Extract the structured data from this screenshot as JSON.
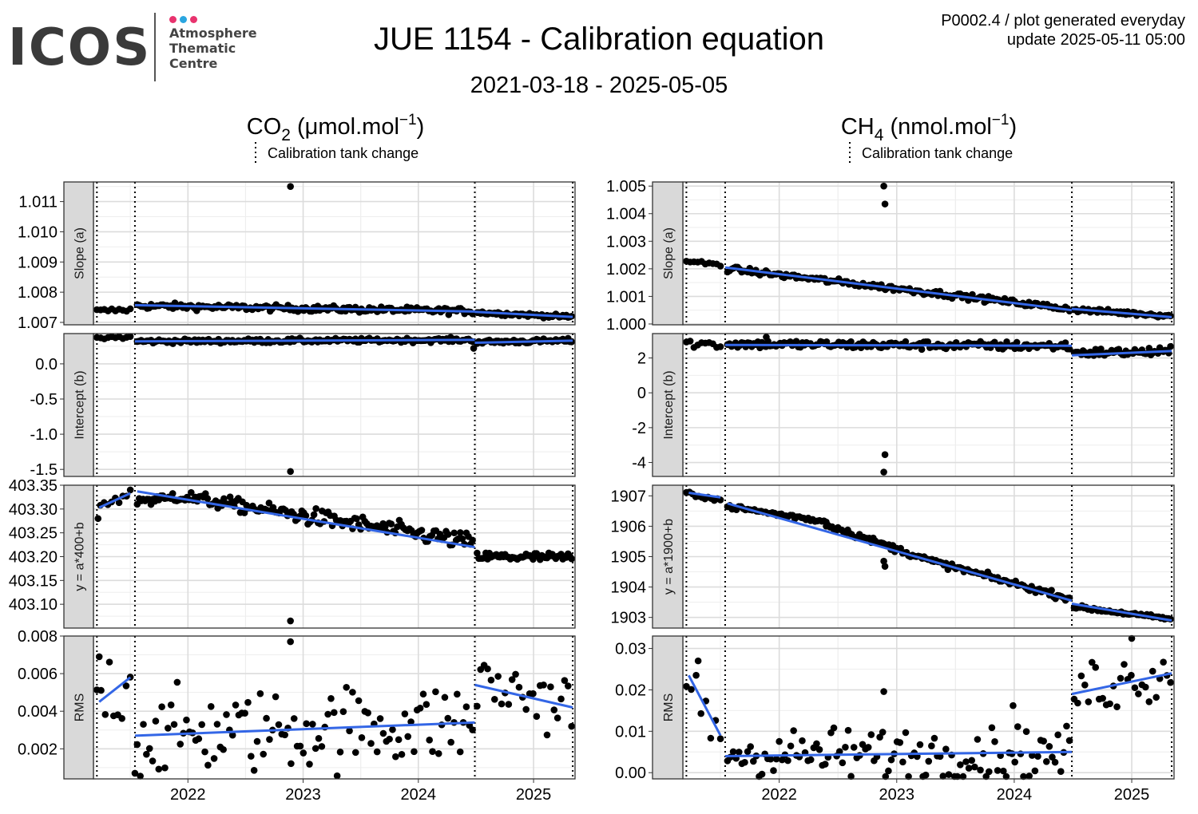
{
  "header": {
    "logo": {
      "wordmark": "ICOS",
      "line1": "Atmosphere",
      "line2": "Thematic",
      "line3": "Centre",
      "dot_colors": [
        "#e8336e",
        "#2aa6e0",
        "#e8336e"
      ]
    },
    "title": "JUE 1154 - Calibration equation",
    "date_range": "2021-03-18 - 2025-05-05",
    "meta_line1": "P0002.4 / plot generated everyday",
    "meta_line2": "update  2025-05-11 05:00"
  },
  "colors": {
    "points": "#000000",
    "trend": "#3366e6",
    "strip_bg": "#d9d9d9",
    "grid_major": "#dcdcdc",
    "grid_minor": "#eeeeee"
  },
  "chart_data": [
    {
      "type": "scatter",
      "title_main": "CO",
      "title_sub": "2",
      "title_unit": " (μmol.mol",
      "title_exp": "−1",
      "title_close": ")",
      "legend": "Calibration tank change",
      "x_ticks": [
        "2022",
        "2023",
        "2024",
        "2025"
      ],
      "x_tick_values": [
        2022.0,
        2023.0,
        2024.0,
        2025.0
      ],
      "xlim": [
        2021.18,
        2025.36
      ],
      "tank_changes": [
        2021.21,
        2021.54,
        2024.49,
        2025.34
      ],
      "panels": [
        {
          "label": "Slope (a)",
          "ylim": [
            1.00692,
            1.01165
          ],
          "y_ticks": [
            "1.007",
            "1.008",
            "1.009",
            "1.010",
            "1.011"
          ],
          "y_tick_values": [
            1.007,
            1.008,
            1.009,
            1.01,
            1.011
          ],
          "trend": [
            [
              2021.54,
              1.00757
            ],
            [
              2024.49,
              1.00736
            ],
            [
              2024.49,
              1.00735
            ],
            [
              2025.34,
              1.00718
            ]
          ],
          "outliers": [
            [
              2022.89,
              1.0115
            ]
          ],
          "segments": [
            {
              "from": 2021.21,
              "to": 2021.5,
              "n": 10,
              "start": 1.00738,
              "end": 1.00742,
              "noise": 4e-05
            },
            {
              "from": 2021.56,
              "to": 2024.47,
              "n": 170,
              "start": 1.00755,
              "end": 1.00737,
              "noise": 5e-05
            },
            {
              "from": 2024.51,
              "to": 2025.33,
              "n": 55,
              "start": 1.00733,
              "end": 1.00718,
              "noise": 3e-05
            }
          ]
        },
        {
          "label": "Intercept (b)",
          "ylim": [
            -1.6,
            0.43
          ],
          "y_ticks": [
            "-1.5",
            "-1.0",
            "-0.5",
            "0.0"
          ],
          "y_tick_values": [
            -1.5,
            -1.0,
            -0.5,
            0.0
          ],
          "trend": [
            [
              2021.54,
              0.32
            ],
            [
              2024.49,
              0.34
            ],
            [
              2024.49,
              0.3
            ],
            [
              2025.34,
              0.33
            ]
          ],
          "outliers": [
            [
              2022.89,
              -1.53
            ],
            [
              2024.48,
              0.22
            ]
          ],
          "segments": [
            {
              "from": 2021.21,
              "to": 2021.5,
              "n": 10,
              "start": 0.37,
              "end": 0.38,
              "noise": 0.015
            },
            {
              "from": 2021.56,
              "to": 2024.47,
              "n": 170,
              "start": 0.32,
              "end": 0.34,
              "noise": 0.015
            },
            {
              "from": 2024.51,
              "to": 2025.33,
              "n": 55,
              "start": 0.31,
              "end": 0.33,
              "noise": 0.015
            }
          ]
        },
        {
          "label": "y = a*400+b",
          "ylim": [
            403.05,
            403.35
          ],
          "y_ticks": [
            "403.10",
            "403.15",
            "403.20",
            "403.25",
            "403.30",
            "403.35"
          ],
          "y_tick_values": [
            403.1,
            403.15,
            403.2,
            403.25,
            403.3,
            403.35
          ],
          "trend": [
            [
              2021.23,
              403.303
            ],
            [
              2021.5,
              403.333
            ],
            [
              2021.56,
              403.337
            ],
            [
              2024.49,
              403.22
            ]
          ],
          "outliers": [
            [
              2022.89,
              403.065
            ],
            [
              2021.22,
              403.28
            ]
          ],
          "segments": [
            {
              "from": 2021.24,
              "to": 2021.5,
              "n": 9,
              "start": 403.31,
              "end": 403.33,
              "noise": 0.006
            },
            {
              "from": 2021.56,
              "to": 2021.85,
              "n": 18,
              "start": 403.32,
              "end": 403.32,
              "noise": 0.007
            },
            {
              "from": 2021.85,
              "to": 2022.9,
              "n": 60,
              "start": 403.33,
              "end": 403.29,
              "noise": 0.007
            },
            {
              "from": 2022.9,
              "to": 2024.47,
              "n": 90,
              "start": 403.29,
              "end": 403.23,
              "noise": 0.009
            },
            {
              "from": 2024.51,
              "to": 2025.33,
              "n": 55,
              "start": 403.2,
              "end": 403.198,
              "noise": 0.005
            }
          ]
        },
        {
          "label": "RMS",
          "ylim": [
            0.0004,
            0.008
          ],
          "y_ticks": [
            "0.002",
            "0.004",
            "0.006",
            "0.008"
          ],
          "y_tick_values": [
            0.002,
            0.004,
            0.006,
            0.008
          ],
          "trend": [
            [
              2021.23,
              0.0045
            ],
            [
              2021.5,
              0.0058
            ],
            [
              2021.54,
              0.0027
            ],
            [
              2024.49,
              0.0034
            ],
            [
              2024.49,
              0.0054
            ],
            [
              2025.34,
              0.0042
            ]
          ],
          "outliers": [
            [
              2022.89,
              0.0077
            ],
            [
              2021.23,
              0.0069
            ],
            [
              2021.54,
              0.0007
            ]
          ],
          "segments": [
            {
              "from": 2021.21,
              "to": 2021.5,
              "n": 9,
              "start": 0.0048,
              "end": 0.0055,
              "noise": 0.0011
            },
            {
              "from": 2021.56,
              "to": 2024.47,
              "n": 110,
              "start": 0.0027,
              "end": 0.0034,
              "noise": 0.0011
            },
            {
              "from": 2024.51,
              "to": 2025.33,
              "n": 28,
              "start": 0.0055,
              "end": 0.0043,
              "noise": 0.0009
            }
          ]
        }
      ]
    },
    {
      "type": "scatter",
      "title_main": "CH",
      "title_sub": "4",
      "title_unit": " (nmol.mol",
      "title_exp": "−1",
      "title_close": ")",
      "legend": "Calibration tank change",
      "x_ticks": [
        "2022",
        "2023",
        "2024",
        "2025"
      ],
      "x_tick_values": [
        2022.0,
        2023.0,
        2024.0,
        2025.0
      ],
      "xlim": [
        2021.18,
        2025.36
      ],
      "tank_changes": [
        2021.21,
        2021.54,
        2024.49,
        2025.34
      ],
      "panels": [
        {
          "label": "Slope (a)",
          "ylim": [
            0.99997,
            1.00515
          ],
          "y_ticks": [
            "1.000",
            "1.001",
            "1.002",
            "1.003",
            "1.004",
            "1.005"
          ],
          "y_tick_values": [
            1.0,
            1.001,
            1.002,
            1.003,
            1.004,
            1.005
          ],
          "trend": [
            [
              2021.54,
              1.00205
            ],
            [
              2024.49,
              1.0005
            ],
            [
              2024.49,
              1.00055
            ],
            [
              2025.34,
              1.00025
            ]
          ],
          "outliers": [
            [
              2022.89,
              1.005
            ],
            [
              2022.9,
              1.00435
            ]
          ],
          "segments": [
            {
              "from": 2021.21,
              "to": 2021.5,
              "n": 10,
              "start": 1.00225,
              "end": 1.00215,
              "noise": 5e-05
            },
            {
              "from": 2021.56,
              "to": 2024.47,
              "n": 170,
              "start": 1.002,
              "end": 1.00055,
              "noise": 5e-05
            },
            {
              "from": 2024.51,
              "to": 2025.33,
              "n": 55,
              "start": 1.00052,
              "end": 1.0003,
              "noise": 4e-05
            }
          ]
        },
        {
          "label": "Intercept (b)",
          "ylim": [
            -4.8,
            3.4
          ],
          "y_ticks": [
            "-4",
            "-2",
            "0",
            "2"
          ],
          "y_tick_values": [
            -4,
            -2,
            0,
            2
          ],
          "trend": [
            [
              2021.54,
              2.75
            ],
            [
              2024.49,
              2.7
            ],
            [
              2024.49,
              2.15
            ],
            [
              2025.34,
              2.4
            ]
          ],
          "outliers": [
            [
              2022.89,
              -4.55
            ],
            [
              2022.9,
              -3.55
            ],
            [
              2021.89,
              3.2
            ]
          ],
          "segments": [
            {
              "from": 2021.21,
              "to": 2021.5,
              "n": 10,
              "start": 2.85,
              "end": 2.75,
              "noise": 0.12
            },
            {
              "from": 2021.56,
              "to": 2024.47,
              "n": 170,
              "start": 2.8,
              "end": 2.68,
              "noise": 0.12
            },
            {
              "from": 2024.51,
              "to": 2025.33,
              "n": 55,
              "start": 2.3,
              "end": 2.35,
              "noise": 0.12
            }
          ]
        },
        {
          "label": "y = a*1900+b",
          "ylim": [
            1902.65,
            1907.35
          ],
          "y_ticks": [
            "1903",
            "1904",
            "1905",
            "1906",
            "1907"
          ],
          "y_tick_values": [
            1903,
            1904,
            1905,
            1906,
            1907
          ],
          "trend": [
            [
              2021.23,
              1907.1
            ],
            [
              2021.5,
              1906.95
            ],
            [
              2021.56,
              1906.75
            ],
            [
              2024.49,
              1903.55
            ],
            [
              2024.49,
              1903.45
            ],
            [
              2025.34,
              1902.9
            ]
          ],
          "outliers": [
            [
              2022.89,
              1904.85
            ],
            [
              2022.9,
              1904.68
            ]
          ],
          "segments": [
            {
              "from": 2021.21,
              "to": 2021.5,
              "n": 12,
              "start": 1907.12,
              "end": 1906.85,
              "noise": 0.04
            },
            {
              "from": 2021.56,
              "to": 2022.4,
              "n": 45,
              "start": 1906.65,
              "end": 1906.15,
              "noise": 0.04
            },
            {
              "from": 2022.4,
              "to": 2023.3,
              "n": 55,
              "start": 1906.05,
              "end": 1904.85,
              "noise": 0.05
            },
            {
              "from": 2023.3,
              "to": 2024.47,
              "n": 70,
              "start": 1904.85,
              "end": 1903.62,
              "noise": 0.05
            },
            {
              "from": 2024.51,
              "to": 2025.33,
              "n": 50,
              "start": 1903.35,
              "end": 1902.95,
              "noise": 0.03
            }
          ]
        },
        {
          "label": "RMS",
          "ylim": [
            -0.0015,
            0.033
          ],
          "y_ticks": [
            "0.00",
            "0.01",
            "0.02",
            "0.03"
          ],
          "y_tick_values": [
            0.0,
            0.01,
            0.02,
            0.03
          ],
          "trend": [
            [
              2021.23,
              0.0235
            ],
            [
              2021.5,
              0.009
            ],
            [
              2021.54,
              0.004
            ],
            [
              2024.49,
              0.005
            ],
            [
              2024.49,
              0.019
            ],
            [
              2025.34,
              0.024
            ]
          ],
          "outliers": [
            [
              2022.89,
              0.0196
            ],
            [
              2021.31,
              0.027
            ],
            [
              2023.99,
              0.0162
            ],
            [
              2025.0,
              0.0325
            ]
          ],
          "segments": [
            {
              "from": 2021.21,
              "to": 2021.5,
              "n": 8,
              "start": 0.0195,
              "end": 0.01,
              "noise": 0.004
            },
            {
              "from": 2021.56,
              "to": 2024.47,
              "n": 120,
              "start": 0.0045,
              "end": 0.0045,
              "noise": 0.0032
            },
            {
              "from": 2024.51,
              "to": 2025.33,
              "n": 28,
              "start": 0.02,
              "end": 0.0245,
              "noise": 0.0035
            }
          ]
        }
      ]
    }
  ]
}
